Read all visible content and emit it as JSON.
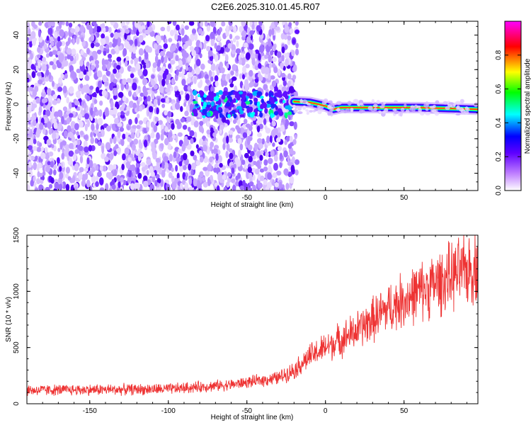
{
  "title": "C2E6.2025.310.01.45.R07",
  "chart_data": [
    {
      "type": "heatmap",
      "xlabel": "Height of straight line (km)",
      "ylabel": "Frequency (Hz)",
      "xlim": [
        -190,
        97
      ],
      "ylim": [
        -50,
        48
      ],
      "xticks": [
        -150,
        -100,
        -50,
        0,
        50
      ],
      "yticks": [
        -40,
        -20,
        0,
        20,
        40
      ],
      "colorbar": {
        "label": "Normalized spectral amplitude",
        "range": [
          0,
          1
        ],
        "ticks": [
          "0.0",
          "0.2",
          "0.4",
          "0.6",
          "0.8"
        ],
        "colors": [
          "#ffffff",
          "#c080ff",
          "#6000ff",
          "#0000ff",
          "#00ffff",
          "#00ff00",
          "#ffff00",
          "#ff0000",
          "#ff00ff"
        ]
      },
      "features": {
        "noise_region_km": [
          -190,
          -20
        ],
        "signal_start_km": -20,
        "signal_line_frequency_hz": [
          {
            "x": -20,
            "y": 1.5
          },
          {
            "x": -10,
            "y": 1
          },
          {
            "x": 0,
            "y": -1
          },
          {
            "x": 5,
            "y": -3
          },
          {
            "x": 10,
            "y": -2
          },
          {
            "x": 30,
            "y": -2
          },
          {
            "x": 60,
            "y": -2
          },
          {
            "x": 97,
            "y": -3
          }
        ]
      }
    },
    {
      "type": "line",
      "xlabel": "Height of straight line (km)",
      "ylabel": "SNR (10 * v/v)",
      "xlim": [
        -190,
        97
      ],
      "ylim": [
        0,
        1500
      ],
      "xticks": [
        -150,
        -100,
        -50,
        0,
        50
      ],
      "yticks": [
        0,
        500,
        1000,
        1500
      ],
      "color": "#ee3333",
      "trend": [
        {
          "x": -190,
          "y": 120
        },
        {
          "x": -100,
          "y": 130
        },
        {
          "x": -60,
          "y": 170
        },
        {
          "x": -30,
          "y": 230
        },
        {
          "x": -20,
          "y": 300
        },
        {
          "x": -10,
          "y": 420
        },
        {
          "x": 0,
          "y": 500
        },
        {
          "x": 20,
          "y": 650
        },
        {
          "x": 40,
          "y": 850
        },
        {
          "x": 60,
          "y": 1000
        },
        {
          "x": 80,
          "y": 1130
        },
        {
          "x": 97,
          "y": 1230
        }
      ]
    }
  ]
}
